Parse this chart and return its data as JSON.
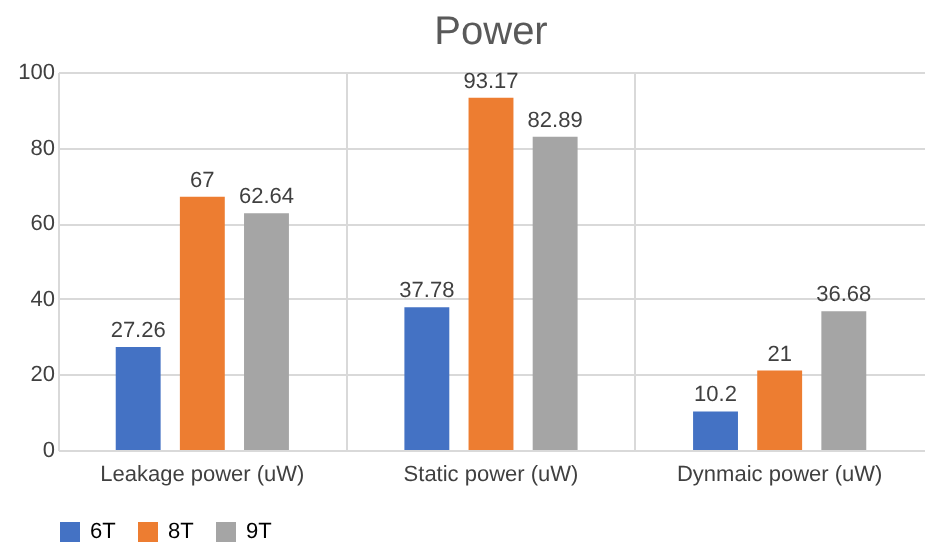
{
  "chart_data": {
    "type": "bar",
    "title": "Power",
    "categories": [
      "Leakage power (uW)",
      "Static power (uW)",
      "Dynmaic power (uW)"
    ],
    "series": [
      {
        "name": "6T",
        "color": "#4472c4",
        "values": [
          27.26,
          37.78,
          10.2
        ]
      },
      {
        "name": "8T",
        "color": "#ed7d31",
        "values": [
          67,
          93.17,
          21
        ]
      },
      {
        "name": "9T",
        "color": "#a5a5a5",
        "values": [
          62.64,
          82.89,
          36.68
        ]
      }
    ],
    "ylim": [
      0,
      100
    ],
    "yticks": [
      0,
      20,
      40,
      60,
      80,
      100
    ],
    "grid": true,
    "legend": "bottom",
    "data_labels": true
  }
}
